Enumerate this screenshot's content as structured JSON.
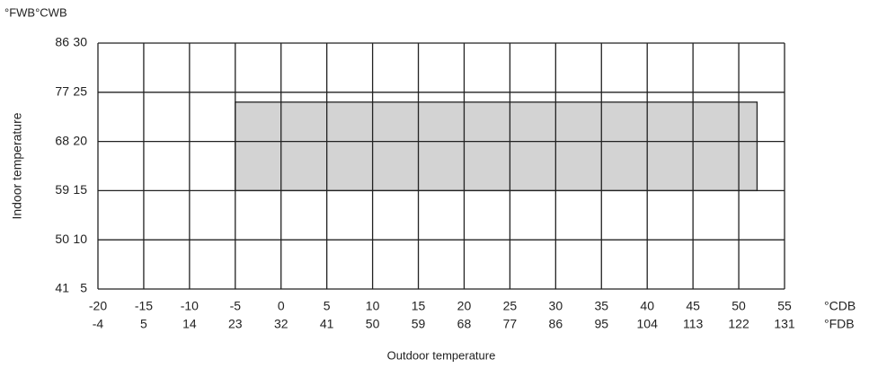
{
  "chart_data": {
    "type": "range",
    "y_unit_label": "°FWB°CWB",
    "x_unit_label": "°CDB",
    "x2_unit_label": "°FDB",
    "xlabel": "Outdoor temperature",
    "ylabel": "Indoor temperature",
    "xlim": [
      -20,
      55
    ],
    "xticks": [
      -20,
      -15,
      -10,
      -5,
      0,
      5,
      10,
      15,
      20,
      25,
      30,
      35,
      40,
      45,
      50,
      55
    ],
    "x2lim": [
      -4,
      131
    ],
    "x2ticks": [
      -4,
      5,
      14,
      23,
      32,
      41,
      50,
      59,
      68,
      77,
      86,
      95,
      104,
      113,
      122,
      131
    ],
    "ylim": [
      5,
      30
    ],
    "yticks": [
      5,
      10,
      15,
      20,
      25,
      30
    ],
    "y2lim": [
      41,
      86
    ],
    "y2ticks": [
      41,
      50,
      59,
      68,
      77,
      86
    ],
    "grid": true,
    "series": [
      {
        "x": [
          -5,
          52
        ],
        "y": [
          15,
          24
        ],
        "color": "#d3d3d3"
      }
    ]
  }
}
